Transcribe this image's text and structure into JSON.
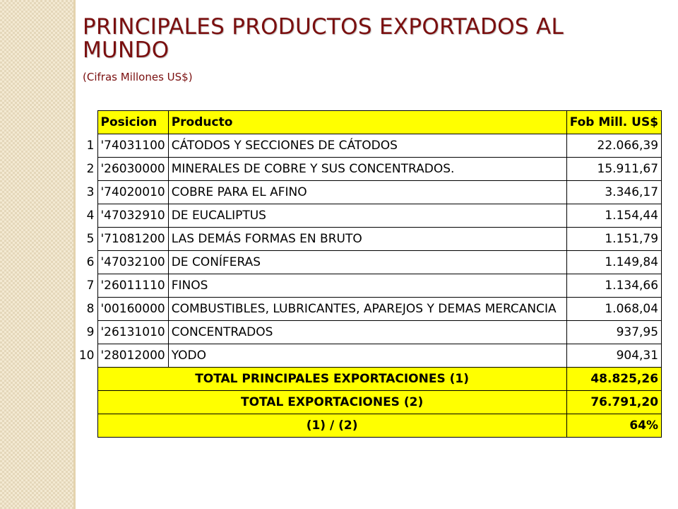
{
  "slide": {
    "title": "PRINCIPALES PRODUCTOS EXPORTADOS AL MUNDO",
    "subtitle": "(Cifras Millones US$)"
  },
  "table": {
    "headers": {
      "posicion": "Posicion",
      "producto": "Producto",
      "fob": "Fob Mill. US$"
    },
    "rows": [
      {
        "rank": "1",
        "code": "'74031100",
        "product": "CÁTODOS Y SECCIONES DE CÁTODOS",
        "fob": "22.066,39"
      },
      {
        "rank": "2",
        "code": "'26030000",
        "product": "MINERALES DE COBRE Y SUS CONCENTRADOS.",
        "fob": "15.911,67"
      },
      {
        "rank": "3",
        "code": "'74020010",
        "product": "COBRE PARA EL AFINO",
        "fob": "3.346,17"
      },
      {
        "rank": "4",
        "code": "'47032910",
        "product": "DE EUCALIPTUS",
        "fob": "1.154,44"
      },
      {
        "rank": "5",
        "code": "'71081200",
        "product": "LAS DEMÁS FORMAS EN BRUTO",
        "fob": "1.151,79"
      },
      {
        "rank": "6",
        "code": "'47032100",
        "product": "DE CONÍFERAS",
        "fob": "1.149,84"
      },
      {
        "rank": "7",
        "code": "'26011110",
        "product": "FINOS",
        "fob": "1.134,66"
      },
      {
        "rank": "8",
        "code": "'00160000",
        "product": "COMBUSTIBLES, LUBRICANTES, APAREJOS Y DEMAS MERCANCIA",
        "fob": "1.068,04"
      },
      {
        "rank": "9",
        "code": "'26131010",
        "product": "CONCENTRADOS",
        "fob": "937,95"
      },
      {
        "rank": "10",
        "code": "'28012000",
        "product": "YODO",
        "fob": "904,31"
      }
    ],
    "totals": [
      {
        "label": "TOTAL PRINCIPALES EXPORTACIONES  (1)",
        "value": "48.825,26"
      },
      {
        "label": "TOTAL EXPORTACIONES  (2)",
        "value": "76.791,20"
      },
      {
        "label": "(1)  /  (2)",
        "value": "64%"
      }
    ]
  }
}
